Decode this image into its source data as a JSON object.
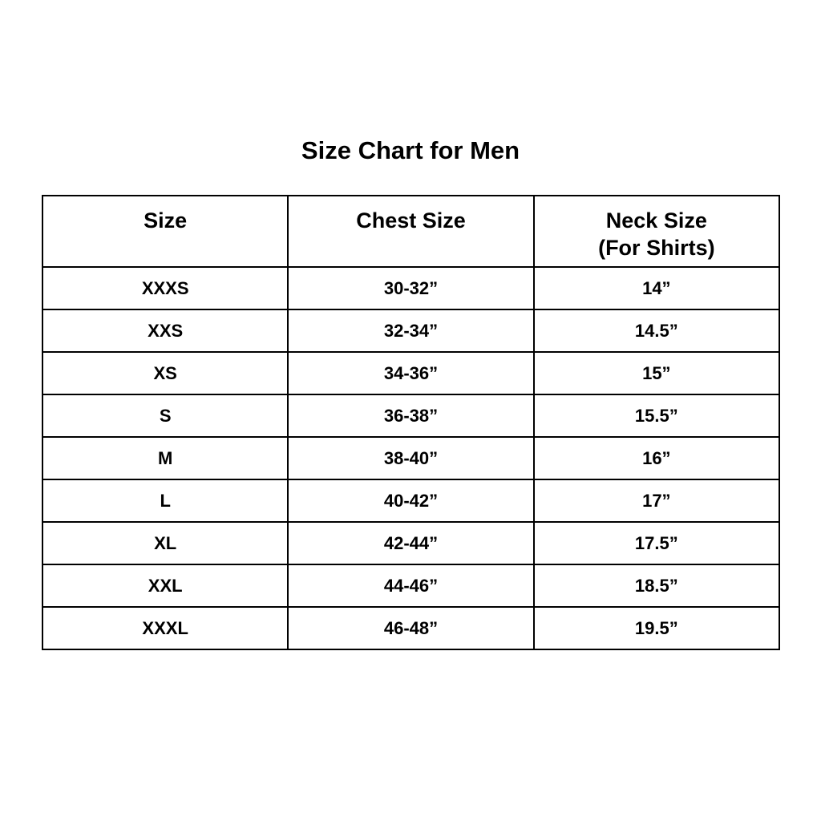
{
  "title": "Size Chart for Men",
  "table": {
    "headers": [
      {
        "line1": "Size",
        "line2": ""
      },
      {
        "line1": "Chest Size",
        "line2": ""
      },
      {
        "line1": "Neck Size",
        "line2": "(For Shirts)"
      }
    ],
    "rows": [
      [
        "XXXS",
        "30-32”",
        "14”"
      ],
      [
        "XXS",
        "32-34”",
        "14.5”"
      ],
      [
        "XS",
        "34-36”",
        "15”"
      ],
      [
        "S",
        "36-38”",
        "15.5”"
      ],
      [
        "M",
        "38-40”",
        "16”"
      ],
      [
        "L",
        "40-42”",
        "17”"
      ],
      [
        "XL",
        "42-44”",
        "17.5”"
      ],
      [
        "XXL",
        "44-46”",
        "18.5”"
      ],
      [
        "XXXL",
        "46-48”",
        "19.5”"
      ]
    ]
  }
}
